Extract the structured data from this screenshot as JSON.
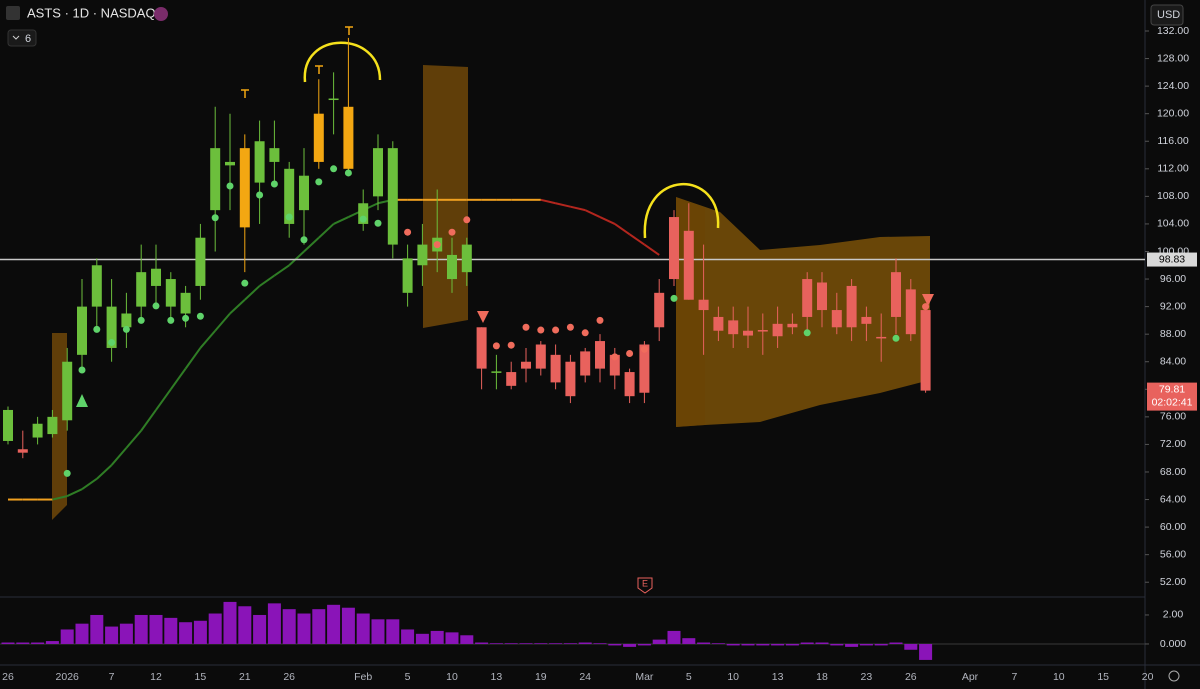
{
  "chart_data": [
    {
      "type": "candlestick",
      "title": "ASTS · 1D · NASDAQ",
      "indicator_setting": 6,
      "currency": "USD",
      "event_marker": "E",
      "categories": [
        "26",
        null,
        null,
        null,
        "2026",
        null,
        null,
        "7",
        null,
        null,
        "12",
        null,
        null,
        "15",
        null,
        null,
        "21",
        null,
        null,
        "26",
        null,
        null,
        null,
        null,
        "Feb",
        null,
        null,
        "5",
        null,
        null,
        "10",
        null,
        null,
        "13",
        null,
        null,
        "19",
        null,
        null,
        "24",
        null,
        null,
        null,
        "Mar",
        null,
        null,
        "5",
        null,
        null,
        "10",
        null,
        null,
        "13",
        null,
        null,
        "18",
        null,
        null,
        "23",
        null,
        null,
        "26",
        null,
        null,
        null,
        "Apr",
        null,
        null,
        "7",
        null,
        null,
        "10",
        null,
        null,
        "15",
        null,
        null,
        "20"
      ],
      "open": [
        72.5,
        71.3,
        73,
        73.5,
        75.5,
        85,
        92,
        86,
        89,
        92,
        95,
        92,
        91,
        95,
        106,
        112.5,
        115,
        110,
        113,
        104,
        106,
        113,
        122,
        112,
        104,
        108,
        101,
        94,
        98,
        100,
        96,
        97,
        89,
        82.5,
        82.5,
        84,
        86.5,
        85,
        84,
        85.5,
        87,
        85,
        82.5,
        86.5,
        94,
        105,
        103,
        93,
        90.5,
        90,
        88.5,
        88.6,
        89.5,
        89.5,
        96,
        95.5,
        91.5,
        95,
        90.5,
        87.6,
        97,
        94.5,
        91.5,
        null,
        null,
        null,
        null,
        null,
        null,
        null,
        null,
        null,
        null,
        null,
        null,
        null,
        null,
        null
      ],
      "high": [
        77.5,
        74,
        76,
        77,
        86,
        96,
        99,
        96,
        94,
        101,
        101,
        97,
        95,
        104,
        121,
        120,
        117,
        119,
        119,
        113,
        115,
        125,
        126,
        131,
        109,
        117,
        116,
        101,
        104,
        109,
        102,
        102,
        89,
        85,
        84,
        86,
        87,
        86.5,
        85,
        86,
        88,
        86,
        83,
        87,
        96,
        106,
        107,
        101,
        92,
        92,
        92,
        91,
        92,
        91,
        97,
        97,
        94,
        96,
        92,
        91,
        99,
        96,
        92,
        null,
        null,
        null,
        null,
        null,
        null,
        null,
        null,
        null,
        null,
        null,
        null,
        null,
        null,
        null
      ],
      "low": [
        72,
        70,
        72,
        73,
        74,
        83,
        89,
        84,
        86,
        90,
        92,
        90,
        89,
        93,
        100,
        106,
        97,
        104,
        110,
        102,
        101,
        112,
        117,
        111,
        103,
        106,
        99,
        92,
        95,
        97,
        94,
        95,
        80,
        80,
        80,
        81,
        82,
        80,
        78,
        81,
        81,
        80,
        78,
        78,
        87,
        95,
        93,
        85,
        87,
        86,
        86,
        85,
        86,
        88,
        88,
        89,
        88,
        87,
        87,
        84,
        88,
        87,
        79.5,
        null,
        null,
        null,
        null,
        null,
        null,
        null,
        null,
        null,
        null,
        null,
        null,
        null,
        null,
        null
      ],
      "close": [
        77,
        70.8,
        75,
        76,
        84,
        92,
        98,
        92,
        91,
        97,
        97.5,
        96,
        94,
        102,
        115,
        113,
        103.5,
        116,
        115,
        112,
        111,
        120,
        122.2,
        121,
        107,
        115,
        115,
        99,
        101,
        102,
        99.5,
        101,
        83,
        82.6,
        80.5,
        83,
        83,
        81,
        79,
        82,
        83,
        82,
        79,
        79.5,
        89,
        96,
        93,
        91.5,
        88.5,
        88,
        87.8,
        88.4,
        87.7,
        89,
        90.5,
        91.5,
        89,
        89,
        89.5,
        87.4,
        90.5,
        88,
        79.81,
        null,
        null,
        null,
        null,
        null,
        null,
        null,
        null,
        null,
        null,
        null,
        null,
        null,
        null,
        null
      ],
      "ma": [
        64,
        64,
        64,
        64,
        64.5,
        65.5,
        67,
        69,
        71.5,
        74,
        77,
        80,
        83,
        86,
        88.5,
        91,
        93,
        95,
        96.5,
        98,
        100,
        102,
        104,
        105,
        106,
        107,
        107.5,
        107.5,
        107.5,
        107.5,
        107.5,
        107.5,
        107.5,
        107.5,
        107.5,
        107.5,
        107.5,
        107,
        106.5,
        106,
        105,
        104,
        102.5,
        101,
        99.5,
        null,
        null,
        null,
        null,
        null,
        null,
        null,
        null,
        null,
        null,
        null,
        null,
        null,
        null,
        null,
        null,
        null,
        null,
        null,
        null,
        null,
        null,
        null,
        null,
        null,
        null,
        null,
        null,
        null,
        null,
        null,
        null,
        null
      ],
      "buy_dots": [
        null,
        null,
        null,
        null,
        67.8,
        82.8,
        88.7,
        86.8,
        88.7,
        90,
        92.1,
        90,
        90.3,
        90.6,
        104.9,
        109.5,
        95.4,
        108.2,
        109.8,
        105,
        101.7,
        110.1,
        112,
        111.4,
        104.7,
        104.1,
        null,
        null,
        null,
        null,
        null,
        null,
        null,
        null,
        null,
        null,
        null,
        null,
        null,
        null,
        null,
        null,
        null,
        null,
        null,
        93.2,
        null,
        null,
        null,
        null,
        null,
        null,
        null,
        null,
        88.2,
        null,
        null,
        null,
        null,
        null,
        87.4,
        null,
        null,
        null,
        null,
        null,
        null,
        null,
        null,
        null,
        null,
        null,
        null,
        null,
        null,
        null,
        null,
        null
      ],
      "sell_dots": [
        null,
        null,
        null,
        null,
        null,
        null,
        null,
        null,
        null,
        null,
        null,
        null,
        null,
        null,
        null,
        null,
        null,
        null,
        null,
        null,
        null,
        null,
        null,
        null,
        null,
        null,
        null,
        102.8,
        null,
        101,
        102.8,
        104.6,
        null,
        86.3,
        86.4,
        89,
        88.6,
        88.6,
        89,
        88.2,
        90,
        84.7,
        85.2,
        85.8,
        null,
        null,
        null,
        null,
        null,
        null,
        null,
        null,
        null,
        null,
        null,
        null,
        null,
        null,
        null,
        null,
        null,
        null,
        92,
        null,
        null,
        null,
        null,
        null,
        null,
        null,
        null,
        null,
        null,
        null,
        null,
        null,
        null,
        null
      ],
      "up_color": "#6cbf3c",
      "down_color": "#e8625d",
      "highlight_color": "#f3a712",
      "highlight_candles": [
        16,
        21,
        23
      ],
      "ma_colors": {
        "up": "#2f7d25",
        "flat": "#f0a020",
        "down": "#b3261e"
      },
      "buy_color": "#5fd36a",
      "sell_color": "#f06c5c",
      "price_line": 98.83,
      "last_price": 79.81,
      "countdown": "02:02:41",
      "ylim": [
        50,
        136.5
      ],
      "yticks": [
        {
          "value": 52,
          "label": "52.00"
        },
        {
          "value": 56,
          "label": "56.00"
        },
        {
          "value": 60,
          "label": "60.00"
        },
        {
          "value": 64,
          "label": "64.00"
        },
        {
          "value": 68,
          "label": "68.00"
        },
        {
          "value": 72,
          "label": "72.00"
        },
        {
          "value": 76,
          "label": "76.00"
        },
        {
          "value": 80,
          "label": "80.00"
        },
        {
          "value": 84,
          "label": "84.00"
        },
        {
          "value": 88,
          "label": "88.00"
        },
        {
          "value": 92,
          "label": "92.00"
        },
        {
          "value": 96,
          "label": "96.00"
        },
        {
          "value": 100,
          "label": "100.00"
        },
        {
          "value": 104,
          "label": "104.00"
        },
        {
          "value": 108,
          "label": "108.00"
        },
        {
          "value": 112,
          "label": "112.00"
        },
        {
          "value": 116,
          "label": "116.00"
        },
        {
          "value": 120,
          "label": "120.00"
        },
        {
          "value": 124,
          "label": "124.00"
        },
        {
          "value": 128,
          "label": "128.00"
        },
        {
          "value": 132,
          "label": "132.00"
        }
      ],
      "grid": false
    },
    {
      "type": "bar",
      "color": "#8a14b8",
      "values": [
        0.1,
        0.1,
        0.1,
        0.2,
        1.0,
        1.4,
        2.0,
        1.2,
        1.4,
        2.0,
        2.0,
        1.8,
        1.5,
        1.6,
        2.1,
        2.9,
        2.6,
        2.0,
        2.8,
        2.4,
        2.1,
        2.4,
        2.7,
        2.5,
        2.1,
        1.7,
        1.7,
        1.0,
        0.7,
        0.9,
        0.8,
        0.6,
        0.1,
        0.05,
        0.05,
        0.05,
        0.05,
        0.05,
        0.05,
        0.1,
        0.05,
        -0.1,
        -0.2,
        -0.1,
        0.3,
        0.9,
        0.4,
        0.1,
        0.05,
        -0.1,
        -0.1,
        -0.1,
        -0.1,
        -0.1,
        0.1,
        0.1,
        -0.1,
        -0.2,
        -0.1,
        -0.1,
        0.1,
        -0.4,
        -1.1
      ],
      "ylim": [
        -1.45,
        3.17
      ],
      "yticks": [
        {
          "value": 2,
          "label": "2.00"
        },
        {
          "value": 0,
          "label": "0.000"
        }
      ],
      "grid": false
    }
  ]
}
